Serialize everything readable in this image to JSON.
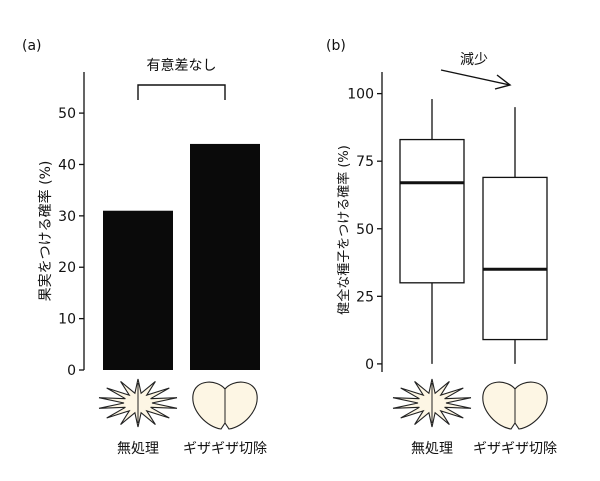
{
  "chart_data": [
    {
      "type": "bar",
      "panel_label": "(a)",
      "title": "",
      "xlabel": "",
      "ylabel": "果実をつける確率 (%)",
      "ylim": [
        0,
        58
      ],
      "yticks": [
        0,
        10,
        20,
        30,
        40,
        50
      ],
      "categories": [
        "無処理",
        "ギザギザ切除"
      ],
      "values": [
        31,
        44
      ],
      "annotation": "有意差なし",
      "bar_color": "#0a0a0a",
      "grid": false
    },
    {
      "type": "box",
      "panel_label": "(b)",
      "title": "",
      "xlabel": "",
      "ylabel": "健全な種子をつける確率 (%)",
      "ylim": [
        -3,
        108
      ],
      "yticks": [
        0,
        25,
        50,
        75,
        100
      ],
      "categories": [
        "無処理",
        "ギザギザ切除"
      ],
      "boxes": [
        {
          "min": 0,
          "q1": 30,
          "median": 67,
          "q3": 83,
          "max": 98
        },
        {
          "min": 0,
          "q1": 9,
          "median": 35,
          "q3": 69,
          "max": 95
        }
      ],
      "annotation": "減少",
      "grid": false
    }
  ],
  "icons": {
    "untreated": "spiky-flower-icon",
    "trimmed": "smooth-flower-icon",
    "fill_color": "#fdf6e4"
  }
}
